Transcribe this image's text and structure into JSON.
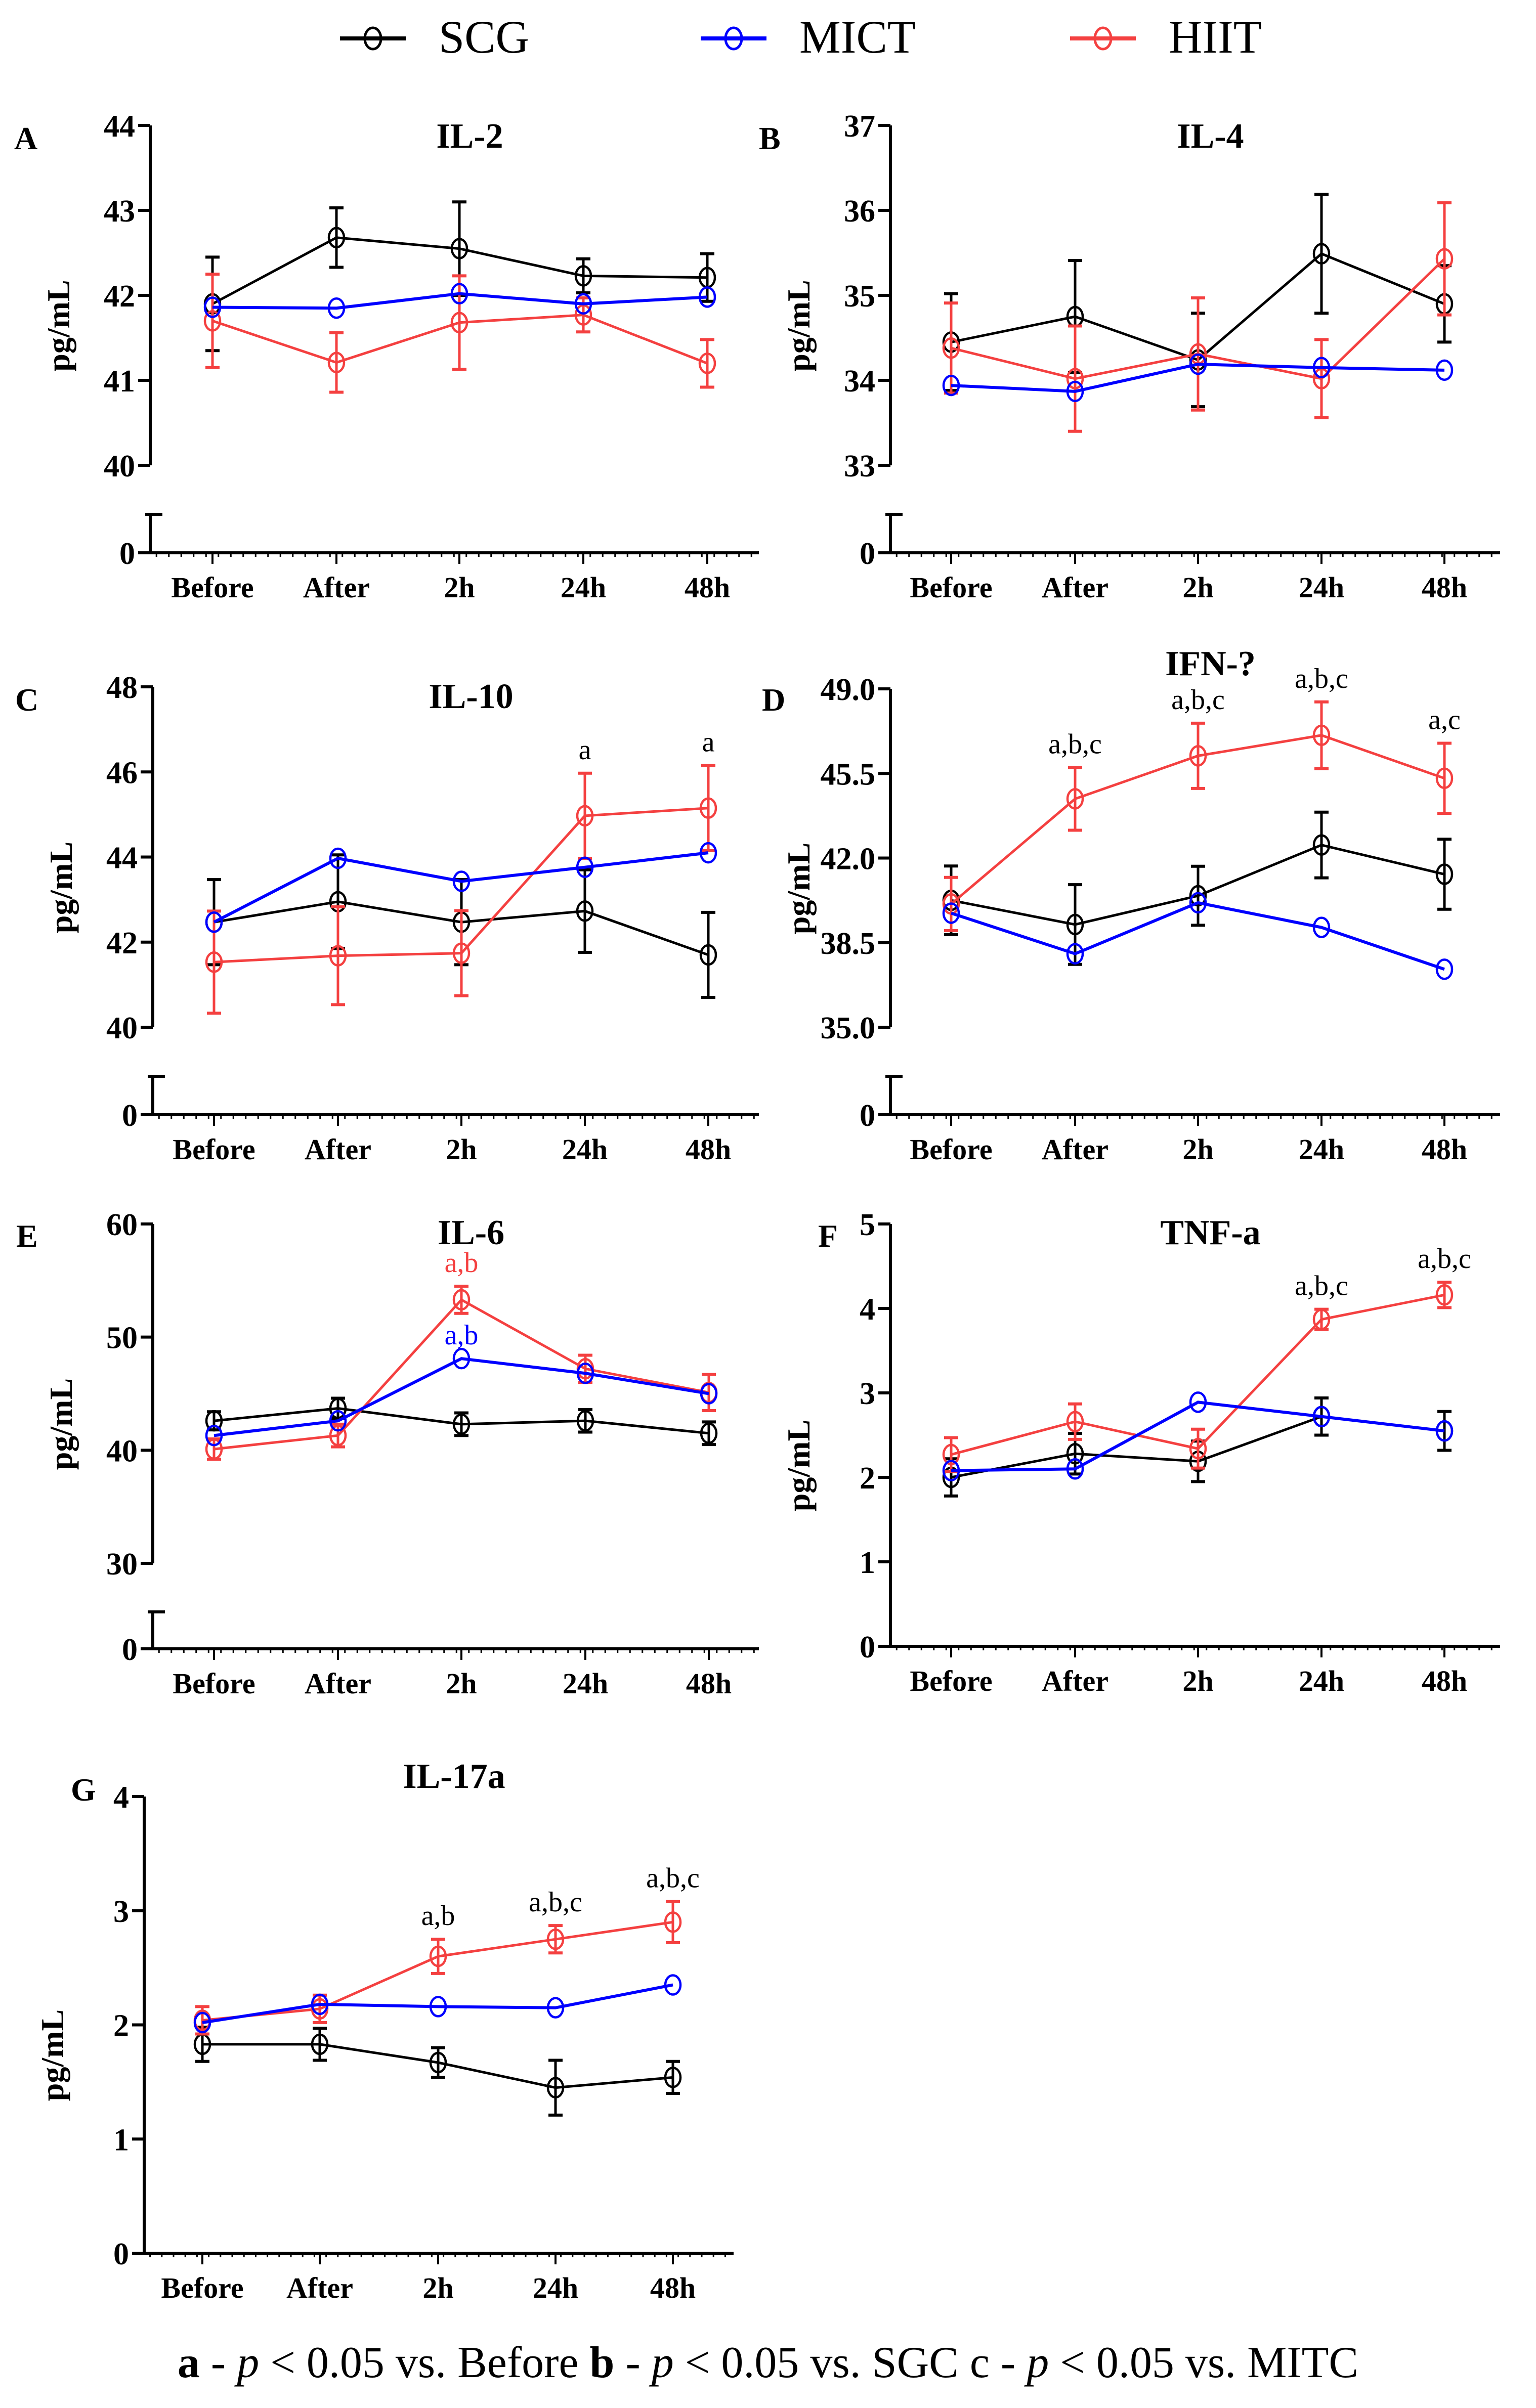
{
  "legend": {
    "items": [
      {
        "name": "SCG",
        "color": "#000000"
      },
      {
        "name": "MICT",
        "color": "#0000ff"
      },
      {
        "name": "HIIT",
        "color": "#f44040"
      }
    ]
  },
  "footnote": {
    "a_letter": "a",
    "a_text": "p < 0.05 vs. Before",
    "b_letter": "b",
    "b_text": "p < 0.05 vs. SGC",
    "c_letter": "c",
    "c_text": "p < 0.05 vs. MITC",
    "full": "a - p < 0.05 vs. Before b - p < 0.05 vs. SGC c - p < 0.05 vs. MITC"
  },
  "chart_data": [
    {
      "panel": "A",
      "type": "line",
      "title": "IL-2",
      "xlabel": "",
      "ylabel": "pg/mL",
      "categories": [
        "Before",
        "After",
        "2h",
        "24h",
        "48h"
      ],
      "ylim": [
        40,
        44
      ],
      "yticks": [
        "40",
        "41",
        "42",
        "43",
        "44"
      ],
      "axis_break": true,
      "zero_label": "0",
      "series": [
        {
          "name": "SCG",
          "values": [
            41.9,
            42.68,
            42.55,
            42.23,
            42.21
          ],
          "errors": [
            0.55,
            0.35,
            0.55,
            0.2,
            0.28
          ]
        },
        {
          "name": "MICT",
          "values": [
            41.86,
            41.85,
            42.02,
            41.9,
            41.98
          ],
          "errors": [
            0,
            0,
            0,
            0,
            0
          ]
        },
        {
          "name": "HIIT",
          "values": [
            41.7,
            41.21,
            41.68,
            41.77,
            41.2
          ],
          "errors": [
            0.55,
            0.35,
            0.55,
            0.2,
            0.28
          ]
        }
      ],
      "annotations": []
    },
    {
      "panel": "B",
      "type": "line",
      "title": "IL-4",
      "xlabel": "",
      "ylabel": "pg/mL",
      "categories": [
        "Before",
        "After",
        "2h",
        "24h",
        "48h"
      ],
      "ylim": [
        33,
        37
      ],
      "yticks": [
        "33",
        "34",
        "35",
        "36",
        "37"
      ],
      "axis_break": true,
      "zero_label": "0",
      "series": [
        {
          "name": "SCG",
          "values": [
            34.45,
            34.75,
            34.24,
            35.49,
            34.9
          ],
          "errors": [
            0.57,
            0.66,
            0.55,
            0.7,
            0.45
          ]
        },
        {
          "name": "MICT",
          "values": [
            33.94,
            33.87,
            34.19,
            34.15,
            34.12
          ],
          "errors": [
            0,
            0,
            0,
            0,
            0
          ]
        },
        {
          "name": "HIIT",
          "values": [
            34.38,
            34.02,
            34.31,
            34.02,
            35.43
          ],
          "errors": [
            0.53,
            0.62,
            0.66,
            0.46,
            0.66
          ]
        }
      ],
      "annotations": []
    },
    {
      "panel": "C",
      "type": "line",
      "title": "IL-10",
      "xlabel": "",
      "ylabel": "pg/mL",
      "categories": [
        "Before",
        "After",
        "2h",
        "24h",
        "48h"
      ],
      "ylim": [
        40,
        48
      ],
      "yticks": [
        "40",
        "42",
        "44",
        "46",
        "48"
      ],
      "axis_break": true,
      "zero_label": "0",
      "series": [
        {
          "name": "SCG",
          "values": [
            42.47,
            42.95,
            42.47,
            42.73,
            41.7
          ],
          "errors": [
            1.0,
            1.1,
            1.0,
            0.97,
            1.0
          ]
        },
        {
          "name": "MICT",
          "values": [
            42.47,
            43.97,
            43.43,
            43.76,
            44.1
          ],
          "errors": [
            0,
            0,
            0,
            0,
            0
          ]
        },
        {
          "name": "HIIT",
          "values": [
            41.53,
            41.68,
            41.74,
            44.97,
            45.15
          ],
          "errors": [
            1.2,
            1.15,
            1.0,
            1.0,
            1.0
          ]
        }
      ],
      "annotations": [
        {
          "series": "HIIT",
          "category": "24h",
          "text": "a",
          "color": "#000000"
        },
        {
          "series": "HIIT",
          "category": "48h",
          "text": "a",
          "color": "#000000"
        }
      ]
    },
    {
      "panel": "D",
      "type": "line",
      "title": "IFN-?",
      "xlabel": "",
      "ylabel": "pg/mL",
      "categories": [
        "Before",
        "After",
        "2h",
        "24h",
        "48h"
      ],
      "ylim": [
        35,
        49
      ],
      "yticks": [
        "35.0",
        "38.5",
        "42.0",
        "45.5",
        "49.0"
      ],
      "axis_break": true,
      "zero_label": "0",
      "series": [
        {
          "name": "SCG",
          "values": [
            40.25,
            39.25,
            40.44,
            42.54,
            41.33
          ],
          "errors": [
            1.42,
            1.65,
            1.22,
            1.36,
            1.45
          ]
        },
        {
          "name": "MICT",
          "values": [
            39.72,
            38.04,
            40.15,
            39.13,
            37.4
          ],
          "errors": [
            0,
            0,
            0,
            0,
            0
          ]
        },
        {
          "name": "HIIT",
          "values": [
            40.1,
            44.45,
            46.23,
            47.08,
            45.3
          ],
          "errors": [
            1.1,
            1.3,
            1.35,
            1.38,
            1.45
          ]
        }
      ],
      "annotations": [
        {
          "series": "HIIT",
          "category": "After",
          "text": "a,b,c",
          "color": "#000000"
        },
        {
          "series": "HIIT",
          "category": "2h",
          "text": "a,b,c",
          "color": "#000000"
        },
        {
          "series": "HIIT",
          "category": "24h",
          "text": "a,b,c",
          "color": "#000000"
        },
        {
          "series": "HIIT",
          "category": "48h",
          "text": "a,c",
          "color": "#000000"
        }
      ]
    },
    {
      "panel": "E",
      "type": "line",
      "title": "IL-6",
      "xlabel": "",
      "ylabel": "pg/mL",
      "categories": [
        "Before",
        "After",
        "2h",
        "24h",
        "48h"
      ],
      "ylim": [
        30,
        60
      ],
      "yticks": [
        "30",
        "40",
        "50",
        "60"
      ],
      "axis_break": true,
      "zero_label": "0",
      "series": [
        {
          "name": "SCG",
          "values": [
            42.6,
            43.7,
            42.3,
            42.6,
            41.5
          ],
          "errors": [
            0.8,
            0.9,
            1.0,
            1.0,
            1.0
          ]
        },
        {
          "name": "MICT",
          "values": [
            41.3,
            42.6,
            48.1,
            46.8,
            45.0
          ],
          "errors": [
            0,
            0,
            0,
            0,
            0
          ]
        },
        {
          "name": "HIIT",
          "values": [
            40.1,
            41.3,
            53.3,
            47.2,
            45.1
          ],
          "errors": [
            0.9,
            1.0,
            1.2,
            1.2,
            1.6
          ]
        }
      ],
      "annotations": [
        {
          "series": "HIIT",
          "category": "2h",
          "text": "a,b",
          "color": "#f44040"
        },
        {
          "series": "MICT",
          "category": "2h",
          "text": "a,b",
          "color": "#0000ff"
        }
      ]
    },
    {
      "panel": "F",
      "type": "line",
      "title": "TNF-a",
      "xlabel": "",
      "ylabel": "pg/mL",
      "categories": [
        "Before",
        "After",
        "2h",
        "24h",
        "48h"
      ],
      "ylim": [
        0,
        5
      ],
      "yticks": [
        "0",
        "1",
        "2",
        "3",
        "4",
        "5"
      ],
      "axis_break": false,
      "series": [
        {
          "name": "SCG",
          "values": [
            2.0,
            2.28,
            2.19,
            2.72,
            2.55
          ],
          "errors": [
            0.22,
            0.24,
            0.24,
            0.22,
            0.23
          ]
        },
        {
          "name": "MICT",
          "values": [
            2.08,
            2.1,
            2.89,
            2.72,
            2.55
          ],
          "errors": [
            0,
            0,
            0,
            0,
            0
          ]
        },
        {
          "name": "HIIT",
          "values": [
            2.27,
            2.66,
            2.34,
            3.87,
            4.16
          ],
          "errors": [
            0.2,
            0.21,
            0.23,
            0.12,
            0.15
          ]
        }
      ],
      "annotations": [
        {
          "series": "HIIT",
          "category": "24h",
          "text": "a,b,c",
          "color": "#000000"
        },
        {
          "series": "HIIT",
          "category": "48h",
          "text": "a,b,c",
          "color": "#000000"
        }
      ]
    },
    {
      "panel": "G",
      "type": "line",
      "title": "IL-17a",
      "xlabel": "",
      "ylabel": "pg/mL",
      "categories": [
        "Before",
        "After",
        "2h",
        "24h",
        "48h"
      ],
      "ylim": [
        0,
        4
      ],
      "yticks": [
        "0",
        "1",
        "2",
        "3",
        "4"
      ],
      "axis_break": false,
      "series": [
        {
          "name": "SCG",
          "values": [
            1.83,
            1.83,
            1.67,
            1.45,
            1.54
          ],
          "errors": [
            0.15,
            0.14,
            0.13,
            0.24,
            0.14
          ]
        },
        {
          "name": "MICT",
          "values": [
            2.02,
            2.18,
            2.16,
            2.15,
            2.35
          ],
          "errors": [
            0,
            0,
            0,
            0,
            0
          ]
        },
        {
          "name": "HIIT",
          "values": [
            2.04,
            2.14,
            2.6,
            2.75,
            2.9
          ],
          "errors": [
            0.12,
            0.12,
            0.15,
            0.12,
            0.18
          ]
        }
      ],
      "annotations": [
        {
          "series": "HIIT",
          "category": "2h",
          "text": "a,b",
          "color": "#000000"
        },
        {
          "series": "HIIT",
          "category": "24h",
          "text": "a,b,c",
          "color": "#000000"
        },
        {
          "series": "HIIT",
          "category": "48h",
          "text": "a,b,c",
          "color": "#000000"
        }
      ]
    }
  ]
}
